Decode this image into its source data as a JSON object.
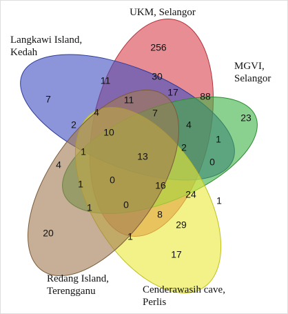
{
  "sets": [
    [
      "UKM, Selangor"
    ],
    [
      "Langkawi Island,",
      "Kedah"
    ],
    [
      "MGVI,",
      "Selangor"
    ],
    [
      "Redang Island,",
      "Terengganu"
    ],
    [
      "Cenderawasih cave,",
      "Perlis"
    ]
  ],
  "regions": [
    256,
    30,
    11,
    17,
    88,
    7,
    11,
    4,
    7,
    23,
    2,
    10,
    4,
    1,
    1,
    13,
    2,
    0,
    4,
    0,
    16,
    24,
    1,
    1,
    1,
    0,
    8,
    29,
    20,
    1,
    17
  ]
}
